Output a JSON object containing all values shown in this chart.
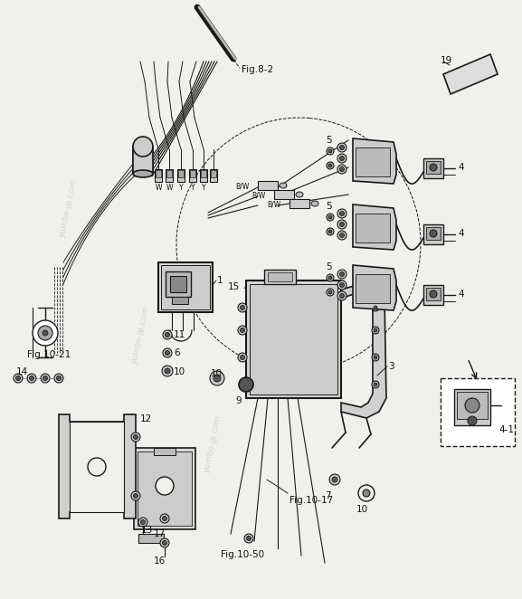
{
  "bg_color": "#f0f0ec",
  "line_color": "#1a1a1a",
  "gray_fill": "#c8c8c8",
  "dark_fill": "#555555",
  "mid_fill": "#888888",
  "light_fill": "#e0e0e0",
  "watermark_color": "#bbbbbb",
  "watermark_text": "yumbo-jp.com",
  "labels": {
    "fig82": "Fig.8-2",
    "fig1021": "Fig.10-21",
    "fig1017": "Fig.10-17",
    "fig1050": "Fig.10-50",
    "n1": "1",
    "n3": "3",
    "n4": "4",
    "n4_1": "4-1",
    "n5": "5",
    "n6": "6",
    "n7": "7",
    "n9": "9",
    "n10": "10",
    "n11": "11",
    "n12": "12",
    "n13": "13",
    "n14": "14",
    "n15": "15",
    "n16": "16",
    "n17": "17",
    "n19": "19"
  }
}
